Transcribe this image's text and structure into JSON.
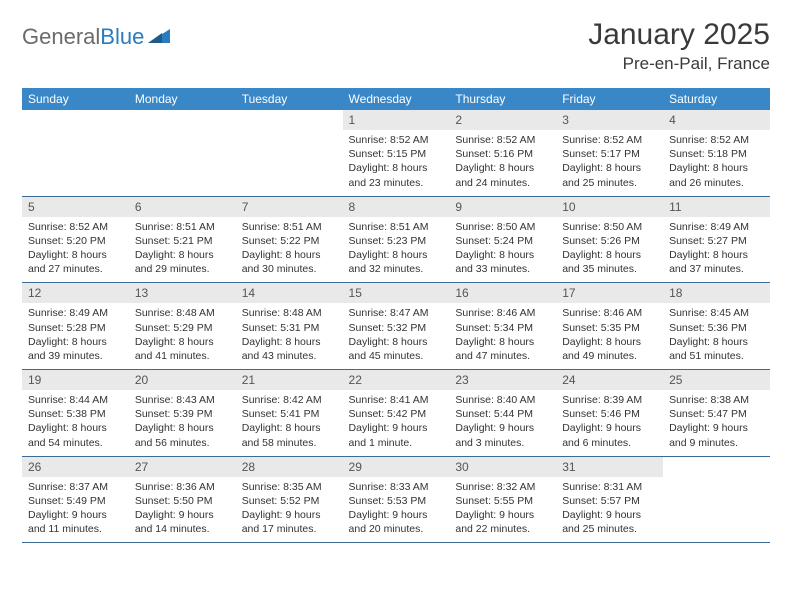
{
  "logo": {
    "word1": "General",
    "word2": "Blue"
  },
  "title": "January 2025",
  "location": "Pre-en-Pail, France",
  "colors": {
    "header_bg": "#3a87c7",
    "header_text": "#ffffff",
    "daynum_bg": "#e9e9e9",
    "row_border": "#3a6b94",
    "logo_gray": "#6b6b6b",
    "logo_blue": "#2a7bbf",
    "body_text": "#333333"
  },
  "typography": {
    "month_title_pt": 30,
    "location_pt": 17,
    "day_header_pt": 12,
    "daynum_pt": 12,
    "cell_text_pt": 10.5
  },
  "day_headers": [
    "Sunday",
    "Monday",
    "Tuesday",
    "Wednesday",
    "Thursday",
    "Friday",
    "Saturday"
  ],
  "weeks": [
    [
      {
        "n": "",
        "sunrise": "",
        "sunset": "",
        "daylight": "",
        "empty": true
      },
      {
        "n": "",
        "sunrise": "",
        "sunset": "",
        "daylight": "",
        "empty": true
      },
      {
        "n": "",
        "sunrise": "",
        "sunset": "",
        "daylight": "",
        "empty": true
      },
      {
        "n": "1",
        "sunrise": "Sunrise: 8:52 AM",
        "sunset": "Sunset: 5:15 PM",
        "daylight": "Daylight: 8 hours and 23 minutes."
      },
      {
        "n": "2",
        "sunrise": "Sunrise: 8:52 AM",
        "sunset": "Sunset: 5:16 PM",
        "daylight": "Daylight: 8 hours and 24 minutes."
      },
      {
        "n": "3",
        "sunrise": "Sunrise: 8:52 AM",
        "sunset": "Sunset: 5:17 PM",
        "daylight": "Daylight: 8 hours and 25 minutes."
      },
      {
        "n": "4",
        "sunrise": "Sunrise: 8:52 AM",
        "sunset": "Sunset: 5:18 PM",
        "daylight": "Daylight: 8 hours and 26 minutes."
      }
    ],
    [
      {
        "n": "5",
        "sunrise": "Sunrise: 8:52 AM",
        "sunset": "Sunset: 5:20 PM",
        "daylight": "Daylight: 8 hours and 27 minutes."
      },
      {
        "n": "6",
        "sunrise": "Sunrise: 8:51 AM",
        "sunset": "Sunset: 5:21 PM",
        "daylight": "Daylight: 8 hours and 29 minutes."
      },
      {
        "n": "7",
        "sunrise": "Sunrise: 8:51 AM",
        "sunset": "Sunset: 5:22 PM",
        "daylight": "Daylight: 8 hours and 30 minutes."
      },
      {
        "n": "8",
        "sunrise": "Sunrise: 8:51 AM",
        "sunset": "Sunset: 5:23 PM",
        "daylight": "Daylight: 8 hours and 32 minutes."
      },
      {
        "n": "9",
        "sunrise": "Sunrise: 8:50 AM",
        "sunset": "Sunset: 5:24 PM",
        "daylight": "Daylight: 8 hours and 33 minutes."
      },
      {
        "n": "10",
        "sunrise": "Sunrise: 8:50 AM",
        "sunset": "Sunset: 5:26 PM",
        "daylight": "Daylight: 8 hours and 35 minutes."
      },
      {
        "n": "11",
        "sunrise": "Sunrise: 8:49 AM",
        "sunset": "Sunset: 5:27 PM",
        "daylight": "Daylight: 8 hours and 37 minutes."
      }
    ],
    [
      {
        "n": "12",
        "sunrise": "Sunrise: 8:49 AM",
        "sunset": "Sunset: 5:28 PM",
        "daylight": "Daylight: 8 hours and 39 minutes."
      },
      {
        "n": "13",
        "sunrise": "Sunrise: 8:48 AM",
        "sunset": "Sunset: 5:29 PM",
        "daylight": "Daylight: 8 hours and 41 minutes."
      },
      {
        "n": "14",
        "sunrise": "Sunrise: 8:48 AM",
        "sunset": "Sunset: 5:31 PM",
        "daylight": "Daylight: 8 hours and 43 minutes."
      },
      {
        "n": "15",
        "sunrise": "Sunrise: 8:47 AM",
        "sunset": "Sunset: 5:32 PM",
        "daylight": "Daylight: 8 hours and 45 minutes."
      },
      {
        "n": "16",
        "sunrise": "Sunrise: 8:46 AM",
        "sunset": "Sunset: 5:34 PM",
        "daylight": "Daylight: 8 hours and 47 minutes."
      },
      {
        "n": "17",
        "sunrise": "Sunrise: 8:46 AM",
        "sunset": "Sunset: 5:35 PM",
        "daylight": "Daylight: 8 hours and 49 minutes."
      },
      {
        "n": "18",
        "sunrise": "Sunrise: 8:45 AM",
        "sunset": "Sunset: 5:36 PM",
        "daylight": "Daylight: 8 hours and 51 minutes."
      }
    ],
    [
      {
        "n": "19",
        "sunrise": "Sunrise: 8:44 AM",
        "sunset": "Sunset: 5:38 PM",
        "daylight": "Daylight: 8 hours and 54 minutes."
      },
      {
        "n": "20",
        "sunrise": "Sunrise: 8:43 AM",
        "sunset": "Sunset: 5:39 PM",
        "daylight": "Daylight: 8 hours and 56 minutes."
      },
      {
        "n": "21",
        "sunrise": "Sunrise: 8:42 AM",
        "sunset": "Sunset: 5:41 PM",
        "daylight": "Daylight: 8 hours and 58 minutes."
      },
      {
        "n": "22",
        "sunrise": "Sunrise: 8:41 AM",
        "sunset": "Sunset: 5:42 PM",
        "daylight": "Daylight: 9 hours and 1 minute."
      },
      {
        "n": "23",
        "sunrise": "Sunrise: 8:40 AM",
        "sunset": "Sunset: 5:44 PM",
        "daylight": "Daylight: 9 hours and 3 minutes."
      },
      {
        "n": "24",
        "sunrise": "Sunrise: 8:39 AM",
        "sunset": "Sunset: 5:46 PM",
        "daylight": "Daylight: 9 hours and 6 minutes."
      },
      {
        "n": "25",
        "sunrise": "Sunrise: 8:38 AM",
        "sunset": "Sunset: 5:47 PM",
        "daylight": "Daylight: 9 hours and 9 minutes."
      }
    ],
    [
      {
        "n": "26",
        "sunrise": "Sunrise: 8:37 AM",
        "sunset": "Sunset: 5:49 PM",
        "daylight": "Daylight: 9 hours and 11 minutes."
      },
      {
        "n": "27",
        "sunrise": "Sunrise: 8:36 AM",
        "sunset": "Sunset: 5:50 PM",
        "daylight": "Daylight: 9 hours and 14 minutes."
      },
      {
        "n": "28",
        "sunrise": "Sunrise: 8:35 AM",
        "sunset": "Sunset: 5:52 PM",
        "daylight": "Daylight: 9 hours and 17 minutes."
      },
      {
        "n": "29",
        "sunrise": "Sunrise: 8:33 AM",
        "sunset": "Sunset: 5:53 PM",
        "daylight": "Daylight: 9 hours and 20 minutes."
      },
      {
        "n": "30",
        "sunrise": "Sunrise: 8:32 AM",
        "sunset": "Sunset: 5:55 PM",
        "daylight": "Daylight: 9 hours and 22 minutes."
      },
      {
        "n": "31",
        "sunrise": "Sunrise: 8:31 AM",
        "sunset": "Sunset: 5:57 PM",
        "daylight": "Daylight: 9 hours and 25 minutes."
      },
      {
        "n": "",
        "sunrise": "",
        "sunset": "",
        "daylight": "",
        "empty": true
      }
    ]
  ]
}
